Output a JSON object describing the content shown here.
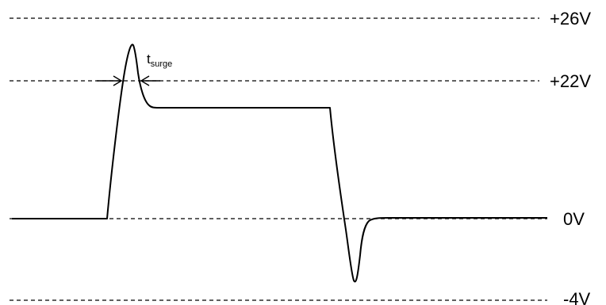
{
  "levels": {
    "plus26": "+26V",
    "plus22": "+22V",
    "zero": "0V",
    "minus4": "-4V"
  },
  "annotation": {
    "main": "t",
    "subscript": "surge"
  }
}
